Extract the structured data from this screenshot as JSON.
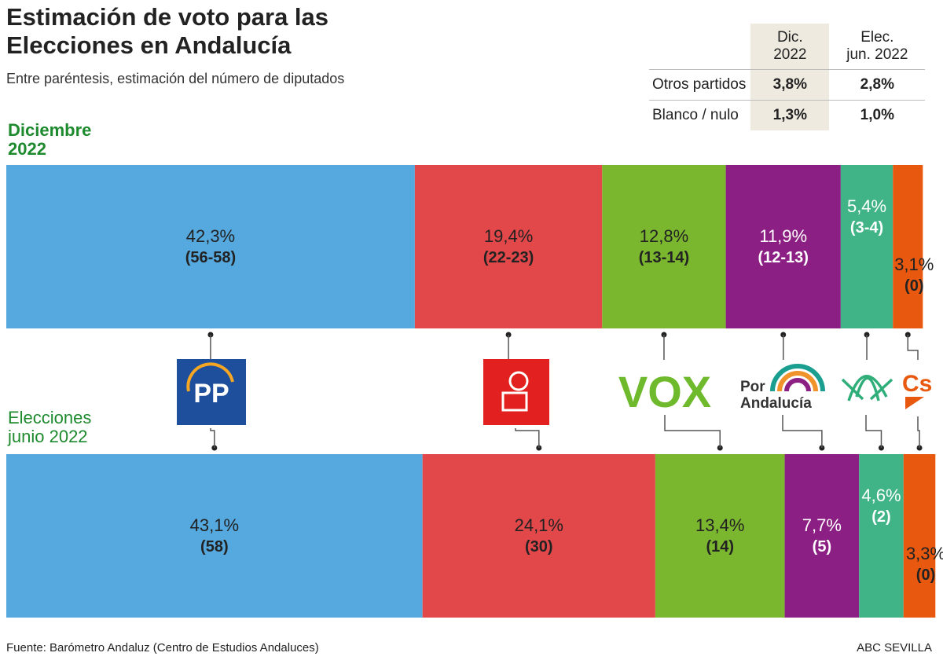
{
  "title": "Estimación de voto para las Elecciones en Andalucía",
  "subtitle": "Entre paréntesis, estimación del número de diputados",
  "table": {
    "headers": [
      "",
      "Dic. 2022",
      "Elec. jun. 2022"
    ],
    "header_dic": [
      "Dic.",
      "2022"
    ],
    "header_jun": [
      "Elec.",
      "jun. 2022"
    ],
    "rows": [
      {
        "label": "Otros partidos",
        "dic": "3,8%",
        "jun": "2,8%"
      },
      {
        "label": "Blanco / nulo",
        "dic": "1,3%",
        "jun": "1,0%"
      }
    ]
  },
  "source": "Fuente: Barómetro Andaluz (Centro de Estudios Andaluces)",
  "credit": "ABC SEVILLA",
  "chart_data": {
    "type": "bar",
    "orientation": "horizontal-stacked",
    "categories": [
      "PP",
      "PSOE",
      "VOX",
      "Por Andalucía",
      "Adelante Andalucía",
      "Cs"
    ],
    "colors": [
      "#55a9de",
      "#e2474a",
      "#7bb62f",
      "#8c1f83",
      "#40b487",
      "#e8590f"
    ],
    "logo_texts": [
      "PP",
      "",
      "VOX",
      "Por Andalucía",
      "",
      "Cs"
    ],
    "series": [
      {
        "name": "Diciembre 2022",
        "values": [
          42.3,
          19.4,
          12.8,
          11.9,
          5.4,
          3.1
        ],
        "labels": [
          "42,3%",
          "19,4%",
          "12,8%",
          "11,9%",
          "5,4%",
          "3,1%"
        ],
        "seats": [
          "(56-58)",
          "(22-23)",
          "(13-14)",
          "(12-13)",
          "(3-4)",
          "(0)"
        ]
      },
      {
        "name": "Elecciones junio 2022",
        "values": [
          43.1,
          24.1,
          13.4,
          7.7,
          4.6,
          3.3
        ],
        "labels": [
          "43,1%",
          "24,1%",
          "13,4%",
          "7,7%",
          "4,6%",
          "3,3%"
        ],
        "seats": [
          "(58)",
          "(30)",
          "(14)",
          "(5)",
          "(2)",
          "(0)"
        ]
      }
    ]
  }
}
